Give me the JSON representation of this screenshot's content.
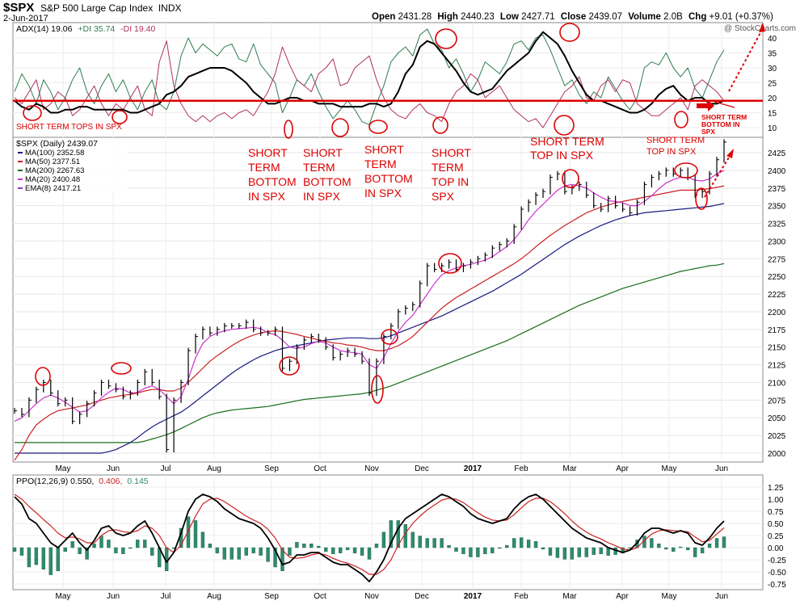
{
  "header": {
    "symbol": "$SPX",
    "name": "S&P 500 Large Cap Index",
    "exchange": "INDX",
    "date": "2-Jun-2017",
    "open_label": "Open",
    "open": "2431.28",
    "high_label": "High",
    "high": "2440.23",
    "low_label": "Low",
    "low": "2427.71",
    "close_label": "Close",
    "close": "2439.07",
    "volume_label": "Volume",
    "volume": "2.0B",
    "chg_label": "Chg",
    "chg": "+9.01 (+0.37%)",
    "brand": "@ StockCharts.com"
  },
  "colors": {
    "price": "#000000",
    "ma100": "#1a1a80",
    "ma50": "#cc2222",
    "ma200": "#1a6e1a",
    "ma20": "#cc33cc",
    "ema8": "#9933cc",
    "pdi": "#2e7d4f",
    "mdi": "#b03060",
    "adx": "#000000",
    "annot": "#dd0000",
    "hist": "#2e8b6e"
  },
  "adx_panel": {
    "legend": [
      {
        "text": "ADX(14) 19.06",
        "color": "#000000"
      },
      {
        "text": "+DI 35.74",
        "color": "#2e7d4f"
      },
      {
        "text": "-DI 19.40",
        "color": "#b03060"
      }
    ],
    "yticks": [
      "40",
      "35",
      "30",
      "25",
      "20",
      "15",
      "10"
    ],
    "line_level": 19,
    "note_tops": "SHORT TERM  TOPS IN SPX",
    "note_bottom": [
      "SHORT TERM",
      "BOTTOM IN",
      "SPX"
    ]
  },
  "price_panel": {
    "legend": [
      {
        "text": "$SPX (Daily) 2439.07",
        "color": "#000000"
      },
      {
        "text": "MA(100) 2352.58",
        "color": "#1a1a80"
      },
      {
        "text": "MA(50) 2377.51",
        "color": "#cc2222"
      },
      {
        "text": "MA(200) 2267.63",
        "color": "#1a6e1a"
      },
      {
        "text": "MA(20) 2400.48",
        "color": "#cc33cc"
      },
      {
        "text": "EMA(8) 2417.21",
        "color": "#9933cc"
      }
    ],
    "yticks": [
      "2425",
      "2400",
      "2375",
      "2350",
      "2325",
      "2300",
      "2275",
      "2250",
      "2225",
      "2200",
      "2175",
      "2150",
      "2125",
      "2100",
      "2075",
      "2050",
      "2025",
      "2000"
    ],
    "annotations": [
      {
        "lines": [
          "SHORT",
          "TERM",
          "BOTTOM",
          "IN SPX"
        ]
      },
      {
        "lines": [
          "SHORT",
          "TERM",
          "BOTTOM",
          "IN SPX"
        ]
      },
      {
        "lines": [
          "SHORT",
          "TERM",
          "BOTTOM",
          "IN SPX"
        ]
      },
      {
        "lines": [
          "SHORT",
          "TERM",
          "TOP  IN",
          "SPX"
        ]
      },
      {
        "lines": [
          "SHORT TERM",
          "TOP  IN SPX"
        ]
      },
      {
        "lines": [
          "SHORT TERM",
          "TOP  IN SPX"
        ]
      }
    ]
  },
  "ppo_panel": {
    "legend": [
      {
        "text": "PPO(12,26,9) 0.550,",
        "color": "#000000"
      },
      {
        "text": "0.406,",
        "color": "#cc2222"
      },
      {
        "text": "0.145",
        "color": "#2e8b6e"
      }
    ],
    "yticks": [
      "1.25",
      "1.00",
      "0.75",
      "0.50",
      "0.25",
      "0.00",
      "-0.25",
      "-0.50",
      "-0.75"
    ]
  },
  "months": [
    "May",
    "Jun",
    "Jul",
    "Aug",
    "Sep",
    "Oct",
    "Nov",
    "Dec",
    "2017",
    "Feb",
    "Mar",
    "Apr",
    "May",
    "Jun"
  ],
  "chart_data": {
    "type": "line",
    "x_labels": [
      "May",
      "Jun",
      "Jul",
      "Aug",
      "Sep",
      "Oct",
      "Nov",
      "Dec",
      "2017",
      "Feb",
      "Mar",
      "Apr",
      "May",
      "Jun"
    ],
    "ylim": [
      1990,
      2445
    ],
    "series": [
      {
        "name": "$SPX (Daily)",
        "values": [
          2060,
          2055,
          2075,
          2090,
          2100,
          2085,
          2070,
          2075,
          2045,
          2055,
          2070,
          2085,
          2100,
          2095,
          2090,
          2080,
          2085,
          2100,
          2115,
          2100,
          2080,
          2005,
          2075,
          2100,
          2145,
          2165,
          2175,
          2170,
          2175,
          2180,
          2180,
          2180,
          2185,
          2175,
          2170,
          2170,
          2175,
          2120,
          2130,
          2150,
          2160,
          2165,
          2160,
          2150,
          2135,
          2140,
          2145,
          2140,
          2130,
          2085,
          2130,
          2165,
          2180,
          2200,
          2205,
          2210,
          2240,
          2265,
          2260,
          2265,
          2270,
          2260,
          2265,
          2270,
          2275,
          2280,
          2290,
          2295,
          2300,
          2320,
          2345,
          2355,
          2365,
          2370,
          2390,
          2395,
          2370,
          2375,
          2380,
          2365,
          2350,
          2345,
          2360,
          2350,
          2345,
          2340,
          2355,
          2380,
          2390,
          2395,
          2400,
          2395,
          2400,
          2390,
          2365,
          2370,
          2395,
          2415,
          2440
        ]
      },
      {
        "name": "MA(20)",
        "values": [
          2045,
          2050,
          2060,
          2070,
          2078,
          2082,
          2078,
          2072,
          2065,
          2058,
          2060,
          2068,
          2078,
          2086,
          2092,
          2090,
          2085,
          2086,
          2092,
          2095,
          2090,
          2080,
          2070,
          2080,
          2105,
          2135,
          2155,
          2165,
          2170,
          2173,
          2175,
          2176,
          2177,
          2178,
          2176,
          2170,
          2168,
          2160,
          2150,
          2148,
          2150,
          2155,
          2158,
          2156,
          2150,
          2145,
          2143,
          2142,
          2140,
          2125,
          2120,
          2135,
          2155,
          2172,
          2185,
          2195,
          2210,
          2225,
          2240,
          2252,
          2258,
          2262,
          2265,
          2267,
          2270,
          2273,
          2278,
          2285,
          2292,
          2302,
          2315,
          2330,
          2342,
          2352,
          2362,
          2372,
          2378,
          2380,
          2378,
          2375,
          2368,
          2362,
          2357,
          2356,
          2354,
          2350,
          2350,
          2356,
          2364,
          2374,
          2382,
          2387,
          2390,
          2390,
          2386,
          2385,
          2388,
          2395,
          2400
        ]
      },
      {
        "name": "MA(50)",
        "values": [
          1990,
          2005,
          2025,
          2040,
          2048,
          2055,
          2060,
          2062,
          2064,
          2066,
          2068,
          2072,
          2075,
          2078,
          2080,
          2082,
          2083,
          2085,
          2088,
          2090,
          2090,
          2088,
          2088,
          2092,
          2100,
          2110,
          2120,
          2130,
          2138,
          2145,
          2152,
          2158,
          2163,
          2167,
          2170,
          2172,
          2173,
          2172,
          2170,
          2168,
          2165,
          2163,
          2160,
          2158,
          2156,
          2155,
          2153,
          2152,
          2150,
          2147,
          2145,
          2145,
          2148,
          2152,
          2158,
          2165,
          2175,
          2185,
          2195,
          2205,
          2213,
          2220,
          2226,
          2232,
          2238,
          2244,
          2250,
          2256,
          2262,
          2268,
          2275,
          2283,
          2292,
          2300,
          2308,
          2315,
          2322,
          2328,
          2334,
          2340,
          2344,
          2348,
          2351,
          2354,
          2356,
          2358,
          2360,
          2362,
          2364,
          2366,
          2368,
          2370,
          2372,
          2372,
          2372,
          2373,
          2374,
          2376,
          2378
        ]
      },
      {
        "name": "MA(100)",
        "values": [
          2000,
          2000,
          2000,
          2000,
          2000,
          2000,
          2000,
          2000,
          2000,
          2000,
          2000,
          2000,
          2000,
          2002,
          2005,
          2010,
          2015,
          2022,
          2030,
          2037,
          2043,
          2048,
          2053,
          2058,
          2065,
          2073,
          2081,
          2089,
          2097,
          2105,
          2113,
          2120,
          2126,
          2132,
          2137,
          2141,
          2145,
          2148,
          2150,
          2152,
          2154,
          2156,
          2158,
          2160,
          2161,
          2162,
          2163,
          2163,
          2163,
          2162,
          2162,
          2163,
          2166,
          2170,
          2174,
          2178,
          2182,
          2186,
          2190,
          2194,
          2199,
          2204,
          2209,
          2214,
          2219,
          2224,
          2229,
          2235,
          2241,
          2247,
          2253,
          2260,
          2267,
          2274,
          2281,
          2288,
          2295,
          2301,
          2307,
          2312,
          2317,
          2322,
          2326,
          2330,
          2333,
          2336,
          2338,
          2340,
          2341,
          2342,
          2343,
          2344,
          2345,
          2346,
          2347,
          2348,
          2349,
          2351,
          2353
        ]
      },
      {
        "name": "MA(200)",
        "values": [
          2015,
          2015,
          2015,
          2015,
          2015,
          2015,
          2015,
          2015,
          2015,
          2015,
          2015,
          2015,
          2015,
          2015,
          2015,
          2015,
          2015,
          2015,
          2017,
          2020,
          2023,
          2026,
          2030,
          2035,
          2040,
          2045,
          2050,
          2054,
          2057,
          2059,
          2061,
          2062,
          2063,
          2064,
          2065,
          2066,
          2068,
          2070,
          2072,
          2074,
          2076,
          2077,
          2078,
          2079,
          2080,
          2081,
          2082,
          2083,
          2084,
          2086,
          2089,
          2092,
          2095,
          2099,
          2103,
          2107,
          2111,
          2115,
          2119,
          2123,
          2127,
          2131,
          2135,
          2139,
          2143,
          2147,
          2151,
          2155,
          2159,
          2164,
          2169,
          2174,
          2179,
          2184,
          2189,
          2194,
          2199,
          2204,
          2209,
          2213,
          2217,
          2221,
          2225,
          2229,
          2233,
          2236,
          2239,
          2242,
          2245,
          2248,
          2251,
          2254,
          2257,
          2259,
          2261,
          2263,
          2265,
          2266,
          2268
        ]
      },
      {
        "name": "+DI",
        "values": [
          22,
          28,
          24,
          18,
          26,
          22,
          16,
          20,
          26,
          30,
          22,
          18,
          24,
          28,
          22,
          26,
          20,
          16,
          22,
          26,
          18,
          16,
          22,
          34,
          40,
          35,
          38,
          36,
          34,
          37,
          38,
          33,
          32,
          38,
          31,
          28,
          25,
          15,
          20,
          26,
          24,
          28,
          22,
          17,
          13,
          16,
          19,
          16,
          12,
          11,
          18,
          24,
          32,
          35,
          37,
          34,
          41,
          43,
          38,
          36,
          30,
          33,
          28,
          22,
          26,
          32,
          30,
          28,
          32,
          38,
          39,
          36,
          40,
          41,
          36,
          30,
          24,
          26,
          21,
          18,
          22,
          20,
          27,
          23,
          19,
          16,
          20,
          30,
          32,
          31,
          35,
          30,
          27,
          30,
          23,
          20,
          26,
          32,
          36
        ]
      },
      {
        "name": "-DI",
        "values": [
          20,
          18,
          22,
          26,
          16,
          18,
          22,
          20,
          14,
          16,
          20,
          24,
          18,
          14,
          18,
          16,
          20,
          24,
          16,
          14,
          32,
          39,
          24,
          18,
          14,
          12,
          14,
          12,
          14,
          15,
          13,
          15,
          16,
          14,
          18,
          22,
          28,
          37,
          31,
          26,
          24,
          22,
          28,
          30,
          33,
          24,
          25,
          30,
          32,
          34,
          26,
          20,
          16,
          14,
          13,
          16,
          18,
          15,
          14,
          12,
          18,
          22,
          24,
          28,
          26,
          20,
          22,
          24,
          20,
          16,
          14,
          12,
          13,
          10,
          14,
          18,
          22,
          24,
          27,
          20,
          19,
          24,
          26,
          22,
          26,
          25,
          18,
          16,
          14,
          14,
          16,
          18,
          20,
          16,
          24,
          26,
          24,
          22,
          19
        ]
      },
      {
        "name": "ADX",
        "values": [
          19,
          17,
          16,
          18,
          17,
          15,
          15,
          16,
          16,
          17,
          17,
          16,
          16,
          16,
          16,
          16,
          15,
          15,
          16,
          17,
          18,
          21,
          22,
          24,
          27,
          28,
          29,
          30,
          30,
          30,
          29,
          27,
          25,
          22,
          20,
          18,
          18,
          19,
          20,
          20,
          19,
          19,
          18,
          18,
          18,
          17,
          17,
          17,
          17,
          18,
          18,
          17,
          18,
          22,
          28,
          31,
          37,
          39,
          38,
          35,
          32,
          29,
          25,
          22,
          21,
          22,
          23,
          26,
          29,
          31,
          33,
          35,
          39,
          42,
          40,
          38,
          34,
          29,
          25,
          21,
          19,
          19,
          18,
          17,
          16,
          15,
          15,
          16,
          18,
          21,
          23,
          24,
          21,
          19,
          20,
          20,
          18,
          18,
          19
        ]
      },
      {
        "name": "PPO",
        "values": [
          1.05,
          0.9,
          0.6,
          0.5,
          0.3,
          0.1,
          0.0,
          0.15,
          0.3,
          0.1,
          -0.05,
          0.15,
          0.4,
          0.45,
          0.3,
          0.25,
          0.3,
          0.45,
          0.55,
          0.3,
          0.0,
          -0.3,
          -0.1,
          0.3,
          0.75,
          1.0,
          1.1,
          1.05,
          0.95,
          0.8,
          0.7,
          0.6,
          0.55,
          0.5,
          0.4,
          0.2,
          -0.05,
          -0.35,
          -0.3,
          -0.15,
          -0.15,
          -0.1,
          -0.1,
          -0.2,
          -0.3,
          -0.35,
          -0.35,
          -0.45,
          -0.55,
          -0.7,
          -0.5,
          -0.25,
          0.1,
          0.4,
          0.6,
          0.7,
          0.8,
          0.9,
          1.0,
          1.1,
          1.05,
          0.95,
          0.85,
          0.7,
          0.6,
          0.55,
          0.5,
          0.55,
          0.6,
          0.8,
          0.95,
          1.05,
          1.1,
          1.0,
          0.85,
          0.7,
          0.55,
          0.4,
          0.3,
          0.2,
          0.15,
          0.1,
          0.0,
          -0.05,
          -0.1,
          -0.05,
          0.1,
          0.3,
          0.4,
          0.4,
          0.35,
          0.3,
          0.35,
          0.3,
          0.1,
          0.05,
          0.2,
          0.4,
          0.55
        ]
      },
      {
        "name": "PPO Signal",
        "values": [
          1.1,
          1.0,
          0.85,
          0.72,
          0.58,
          0.45,
          0.3,
          0.2,
          0.22,
          0.18,
          0.1,
          0.1,
          0.25,
          0.35,
          0.37,
          0.33,
          0.31,
          0.35,
          0.45,
          0.4,
          0.25,
          0.0,
          -0.1,
          0.05,
          0.35,
          0.65,
          0.9,
          1.0,
          1.02,
          0.95,
          0.85,
          0.75,
          0.65,
          0.57,
          0.5,
          0.38,
          0.2,
          -0.05,
          -0.2,
          -0.22,
          -0.2,
          -0.15,
          -0.12,
          -0.15,
          -0.22,
          -0.28,
          -0.32,
          -0.38,
          -0.45,
          -0.55,
          -0.55,
          -0.45,
          -0.25,
          0.05,
          0.3,
          0.5,
          0.65,
          0.78,
          0.88,
          0.98,
          1.02,
          1.0,
          0.93,
          0.82,
          0.72,
          0.63,
          0.57,
          0.55,
          0.57,
          0.68,
          0.82,
          0.95,
          1.02,
          1.02,
          0.95,
          0.83,
          0.7,
          0.55,
          0.42,
          0.32,
          0.24,
          0.18,
          0.1,
          0.04,
          -0.03,
          -0.05,
          0.0,
          0.15,
          0.28,
          0.35,
          0.37,
          0.35,
          0.34,
          0.33,
          0.22,
          0.12,
          0.15,
          0.28,
          0.41
        ]
      }
    ]
  }
}
